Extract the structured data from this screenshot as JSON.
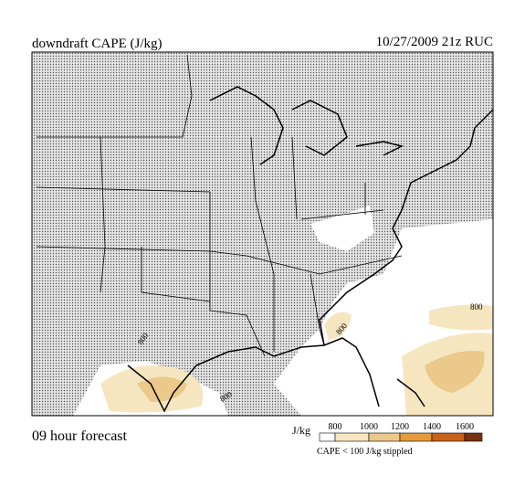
{
  "header": {
    "title": "downdraft CAPE (J/kg)",
    "run": "10/27/2009 21z RUC"
  },
  "map": {
    "contour_labels": [
      "800",
      "800",
      "800",
      "800"
    ]
  },
  "footer": {
    "forecast": "09 hour forecast",
    "legend": {
      "unit": "J/kg",
      "ticks": [
        "800",
        "1000",
        "1200",
        "1400",
        "1600"
      ],
      "note": "CAPE < 100 J/kg stippled"
    }
  }
}
